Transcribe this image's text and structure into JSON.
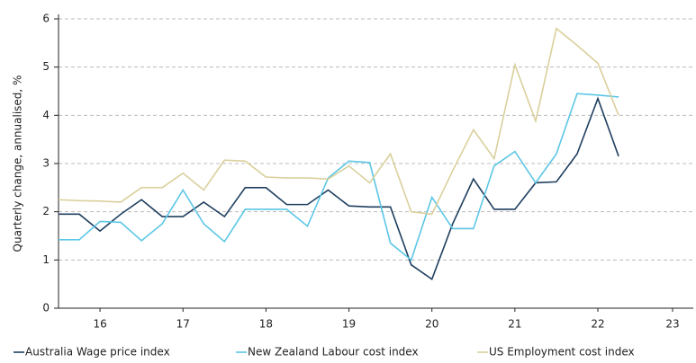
{
  "chart_data": {
    "type": "line",
    "y_label": "Quarterly change, annualised, %",
    "x": [
      2016,
      2016.25,
      2016.5,
      2016.75,
      2017,
      2017.25,
      2017.5,
      2017.75,
      2018,
      2018.25,
      2018.5,
      2018.75,
      2019,
      2019.25,
      2019.5,
      2019.75,
      2020,
      2020.25,
      2020.5,
      2020.75,
      2021,
      2021.25,
      2021.5,
      2021.75,
      2022,
      2022.25,
      2022.5,
      2022.75
    ],
    "series": [
      {
        "name": "Australia Wage price index",
        "color": "#1f3f5f",
        "values": [
          1.95,
          1.95,
          1.6,
          1.95,
          2.25,
          1.9,
          1.9,
          2.2,
          1.9,
          2.5,
          2.5,
          2.15,
          2.15,
          2.45,
          2.12,
          2.1,
          2.1,
          0.9,
          0.6,
          1.75,
          2.68,
          2.05,
          2.05,
          2.6,
          2.62,
          3.2,
          4.35,
          3.15
        ]
      },
      {
        "name": "New Zealand Labour cost index",
        "color": "#5cc6e6",
        "values": [
          1.42,
          1.42,
          1.8,
          1.78,
          1.4,
          1.75,
          2.45,
          1.75,
          1.38,
          2.05,
          2.05,
          2.05,
          1.7,
          2.7,
          3.05,
          3.02,
          1.35,
          1.0,
          2.3,
          1.65,
          1.65,
          2.95,
          3.25,
          2.6,
          3.2,
          4.45,
          4.42,
          4.38
        ]
      },
      {
        "name": "US Employment cost index",
        "color": "#d9d09c",
        "values": [
          2.25,
          2.23,
          2.22,
          2.2,
          2.5,
          2.5,
          2.8,
          2.45,
          3.07,
          3.05,
          2.72,
          2.7,
          2.7,
          2.68,
          2.95,
          2.6,
          3.2,
          2.0,
          1.95,
          2.85,
          3.7,
          3.1,
          5.05,
          3.88,
          5.8,
          5.45,
          5.08,
          4.0
        ]
      }
    ],
    "xlim": [
      2016,
      2023.65
    ],
    "xticks": [
      {
        "value": 2016.5,
        "label": "16"
      },
      {
        "value": 2017.5,
        "label": "17"
      },
      {
        "value": 2018.5,
        "label": "18"
      },
      {
        "value": 2019.5,
        "label": "19"
      },
      {
        "value": 2020.5,
        "label": "20"
      },
      {
        "value": 2021.5,
        "label": "21"
      },
      {
        "value": 2022.5,
        "label": "22"
      },
      {
        "value": 2023.4,
        "label": "23"
      }
    ],
    "ylim": [
      0,
      6
    ],
    "yticks": [
      0,
      1,
      2,
      3,
      4,
      5,
      6
    ],
    "grid": true
  }
}
